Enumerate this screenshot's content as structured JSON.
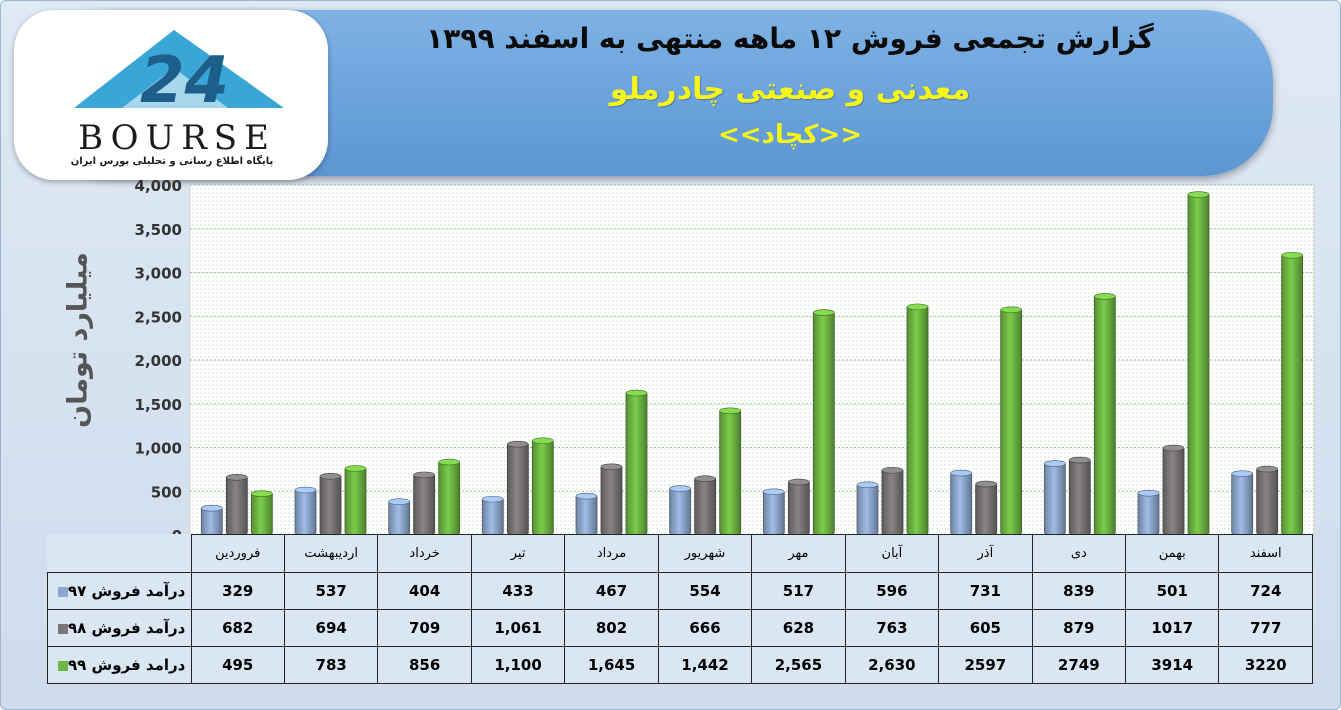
{
  "header": {
    "title": "گزارش تجمعی فروش ۱۲ ماهه منتهی به اسفند ۱۳۹۹",
    "company": "معدنی و صنعتی چادرملو",
    "symbol": "<<کچاد>>"
  },
  "logo": {
    "wordmark": "BOURSE",
    "tagline": "پایگاه اطلاع رسانی و تحلیلی بورس ایران"
  },
  "colors": {
    "series_97": "#8ea9cf",
    "series_98": "#7a7677",
    "series_99": "#6fb743"
  },
  "chart_data": {
    "type": "bar",
    "ylabel": "میلیارد تومان",
    "ylim": [
      0,
      4000
    ],
    "yticks": [
      "0",
      "500",
      "1,000",
      "1,500",
      "2,000",
      "2,500",
      "3,000",
      "3,500",
      "4,000"
    ],
    "categories": [
      "فروردین",
      "اردیبهشت",
      "خرداد",
      "تیر",
      "مرداد",
      "شهریور",
      "مهر",
      "آبان",
      "آذر",
      "دی",
      "بهمن",
      "اسفند"
    ],
    "series": [
      {
        "name": "درآمد فروش ۹۷",
        "values": [
          329,
          537,
          404,
          433,
          467,
          554,
          517,
          596,
          731,
          839,
          501,
          724
        ],
        "labels": [
          "329",
          "537",
          "404",
          "433",
          "467",
          "554",
          "517",
          "596",
          "731",
          "839",
          "501",
          "724"
        ]
      },
      {
        "name": "درآمد فروش ۹۸",
        "values": [
          682,
          694,
          709,
          1061,
          802,
          666,
          628,
          763,
          605,
          879,
          1017,
          777
        ],
        "labels": [
          "682",
          "694",
          "709",
          "1,061",
          "802",
          "666",
          "628",
          "763",
          "605",
          "879",
          "1017",
          "777"
        ]
      },
      {
        "name": "درامد فروش ۹۹",
        "values": [
          495,
          783,
          856,
          1100,
          1645,
          1442,
          2565,
          2630,
          2597,
          2749,
          3914,
          3220
        ],
        "labels": [
          "495",
          "783",
          "856",
          "1,100",
          "1,645",
          "1,442",
          "2,565",
          "2,630",
          "2597",
          "2749",
          "3914",
          "3220"
        ]
      }
    ],
    "grid": true,
    "legend": "table-left"
  }
}
